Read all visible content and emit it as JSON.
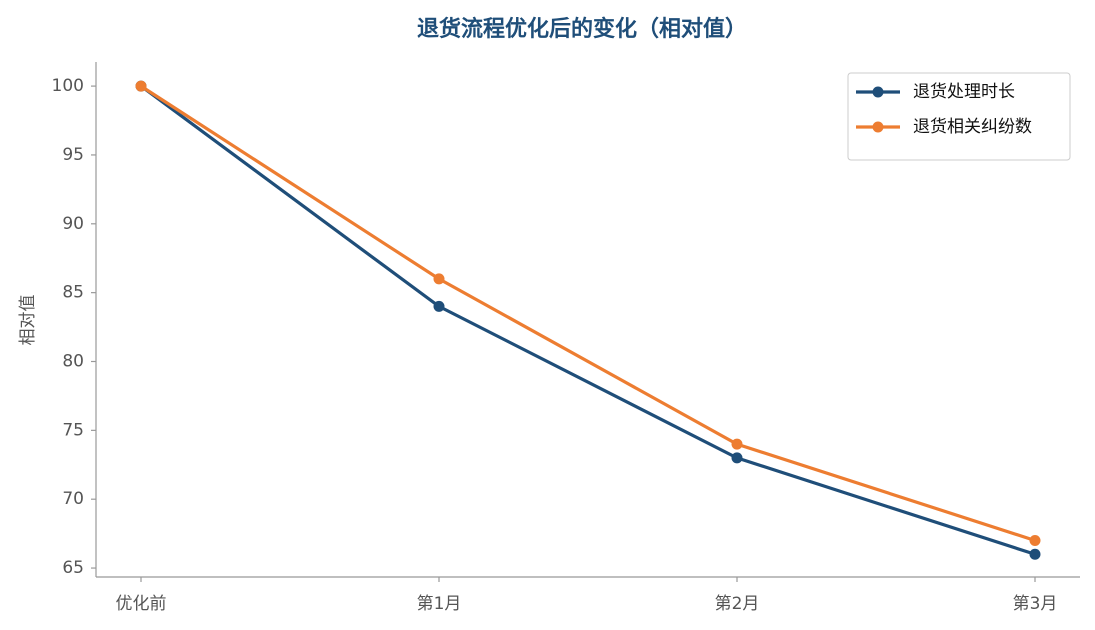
{
  "chart_data": {
    "type": "line",
    "title": "退货流程优化后的变化（相对值）",
    "y_label": "相对值",
    "categories": [
      "优化前",
      "第1月",
      "第2月",
      "第3月"
    ],
    "series": [
      {
        "name": "退货处理时长",
        "color": "#1f4e79",
        "values": [
          100,
          84,
          73,
          66
        ]
      },
      {
        "name": "退货相关纠纷数",
        "color": "#ed7d31",
        "values": [
          100,
          86,
          74,
          67
        ]
      }
    ],
    "ylim": [
      64.35,
      101.75
    ],
    "yticks": [
      65,
      70,
      75,
      80,
      85,
      90,
      95,
      100
    ],
    "grid": false,
    "legend": "upper right"
  }
}
